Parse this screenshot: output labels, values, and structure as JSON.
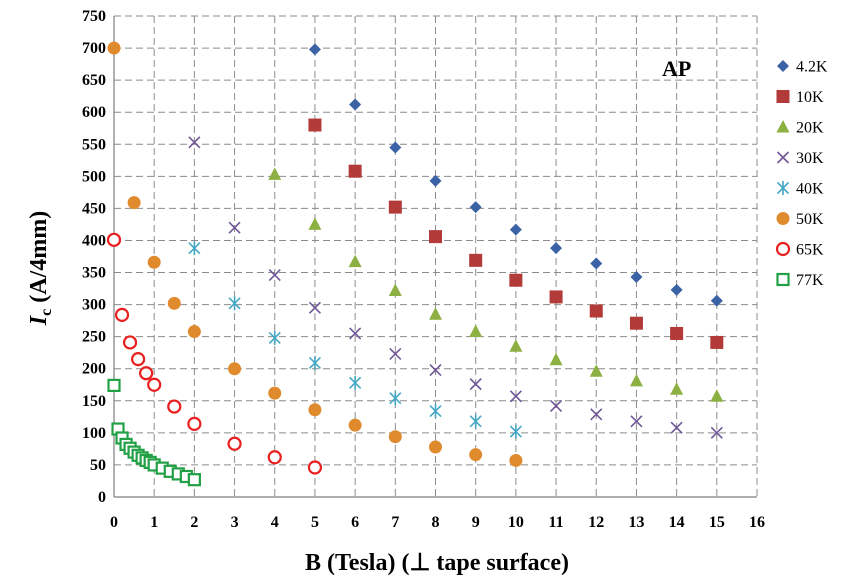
{
  "chart_data": {
    "type": "scatter",
    "annotation": "AP",
    "xlabel": "B (Tesla) (⊥ tape surface)",
    "ylabel_main": "I",
    "ylabel_sub": "c",
    "ylabel_rest": " (A/4mm)",
    "xlim": [
      0,
      16
    ],
    "ylim": [
      0,
      750
    ],
    "xticks": [
      0,
      1,
      2,
      3,
      4,
      5,
      6,
      7,
      8,
      9,
      10,
      11,
      12,
      13,
      14,
      15,
      16
    ],
    "yticks": [
      0,
      50,
      100,
      150,
      200,
      250,
      300,
      350,
      400,
      450,
      500,
      550,
      600,
      650,
      700,
      750
    ],
    "grid": true,
    "legend_position": "right",
    "series": [
      {
        "name": "4.2K",
        "marker": "diamond",
        "color": "#3a62a5",
        "points": [
          [
            5,
            698
          ],
          [
            6,
            612
          ],
          [
            7,
            545
          ],
          [
            8,
            493
          ],
          [
            9,
            452
          ],
          [
            10,
            417
          ],
          [
            11,
            388
          ],
          [
            12,
            364
          ],
          [
            13,
            343
          ],
          [
            14,
            323
          ],
          [
            15,
            306
          ]
        ]
      },
      {
        "name": "10K",
        "marker": "square",
        "color": "#b23a38",
        "points": [
          [
            5,
            580
          ],
          [
            6,
            508
          ],
          [
            7,
            452
          ],
          [
            8,
            406
          ],
          [
            9,
            369
          ],
          [
            10,
            338
          ],
          [
            11,
            312
          ],
          [
            12,
            290
          ],
          [
            13,
            271
          ],
          [
            14,
            255
          ],
          [
            15,
            241
          ]
        ]
      },
      {
        "name": "20K",
        "marker": "triangle",
        "color": "#8db042",
        "points": [
          [
            4,
            503
          ],
          [
            5,
            425
          ],
          [
            6,
            367
          ],
          [
            7,
            322
          ],
          [
            8,
            285
          ],
          [
            9,
            258
          ],
          [
            10,
            235
          ],
          [
            11,
            214
          ],
          [
            12,
            196
          ],
          [
            13,
            181
          ],
          [
            14,
            168
          ],
          [
            15,
            157
          ]
        ]
      },
      {
        "name": "30K",
        "marker": "x",
        "color": "#6f5696",
        "points": [
          [
            2,
            553
          ],
          [
            3,
            420
          ],
          [
            4,
            346
          ],
          [
            5,
            295
          ],
          [
            6,
            255
          ],
          [
            7,
            223
          ],
          [
            8,
            198
          ],
          [
            9,
            176
          ],
          [
            10,
            157
          ],
          [
            11,
            142
          ],
          [
            12,
            129
          ],
          [
            13,
            118
          ],
          [
            14,
            108
          ],
          [
            15,
            100
          ]
        ]
      },
      {
        "name": "40K",
        "marker": "asterisk",
        "color": "#45a7c4",
        "points": [
          [
            2,
            388
          ],
          [
            3,
            302
          ],
          [
            4,
            248
          ],
          [
            5,
            209
          ],
          [
            6,
            178
          ],
          [
            7,
            154
          ],
          [
            8,
            134
          ],
          [
            9,
            118
          ],
          [
            10,
            102
          ]
        ]
      },
      {
        "name": "50K",
        "marker": "circle",
        "color": "#e08a2e",
        "points": [
          [
            0,
            700
          ],
          [
            0.5,
            459
          ],
          [
            1,
            366
          ],
          [
            1.5,
            302
          ],
          [
            2,
            258
          ],
          [
            3,
            200
          ],
          [
            4,
            162
          ],
          [
            5,
            136
          ],
          [
            6,
            112
          ],
          [
            7,
            94
          ],
          [
            8,
            78
          ],
          [
            9,
            66
          ],
          [
            10,
            57
          ]
        ]
      },
      {
        "name": "65K",
        "marker": "open-circle",
        "color": "#e8201f",
        "points": [
          [
            0,
            401
          ],
          [
            0.2,
            284
          ],
          [
            0.4,
            241
          ],
          [
            0.6,
            215
          ],
          [
            0.8,
            193
          ],
          [
            1,
            175
          ],
          [
            1.5,
            141
          ],
          [
            2,
            114
          ],
          [
            3,
            83
          ],
          [
            4,
            62
          ],
          [
            5,
            46
          ]
        ]
      },
      {
        "name": "77K",
        "marker": "open-square",
        "color": "#22a045",
        "points": [
          [
            0,
            174
          ],
          [
            0.1,
            106
          ],
          [
            0.2,
            92
          ],
          [
            0.3,
            82
          ],
          [
            0.4,
            76
          ],
          [
            0.5,
            70
          ],
          [
            0.6,
            65
          ],
          [
            0.7,
            61
          ],
          [
            0.8,
            57
          ],
          [
            0.9,
            54
          ],
          [
            1,
            50
          ],
          [
            1.2,
            45
          ],
          [
            1.4,
            40
          ],
          [
            1.6,
            36
          ],
          [
            1.8,
            32
          ],
          [
            2,
            27
          ]
        ]
      }
    ]
  }
}
